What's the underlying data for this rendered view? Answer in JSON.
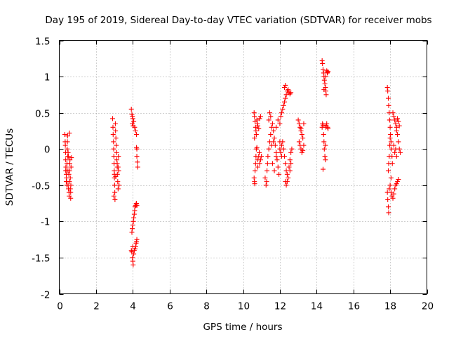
{
  "chart_data": {
    "type": "scatter",
    "title": "Day 195 of 2019, Sidereal Day-to-day VTEC variation (SDTVAR) for receiver mobs",
    "xlabel": "GPS time / hours",
    "ylabel": "SDTVAR / TECUs",
    "xlim": [
      0,
      20
    ],
    "ylim": [
      -2,
      1.5
    ],
    "xticks": [
      0,
      2,
      4,
      6,
      8,
      10,
      12,
      14,
      16,
      18,
      20
    ],
    "xtick_labels": [
      "0",
      "2",
      "4",
      "6",
      "8",
      "10",
      "12",
      "14",
      "16",
      "18",
      "20"
    ],
    "yticks": [
      -2,
      -1.5,
      -1,
      -0.5,
      0,
      0.5,
      1,
      1.5
    ],
    "ytick_labels": [
      "-2",
      "-1.5",
      "-1",
      "-0.5",
      "0",
      "0.5",
      "1",
      "1.5"
    ],
    "grid": true,
    "marker": "+",
    "color": "#ff0000",
    "series": [
      {
        "name": "SDTVAR",
        "points": [
          [
            0.3,
            0.2
          ],
          [
            0.32,
            0.1
          ],
          [
            0.33,
            0.05
          ],
          [
            0.34,
            -0.05
          ],
          [
            0.35,
            -0.15
          ],
          [
            0.36,
            -0.25
          ],
          [
            0.37,
            -0.3
          ],
          [
            0.38,
            -0.35
          ],
          [
            0.39,
            -0.4
          ],
          [
            0.4,
            -0.45
          ],
          [
            0.41,
            -0.5
          ],
          [
            0.42,
            -0.2
          ],
          [
            0.43,
            0.0
          ],
          [
            0.44,
            0.1
          ],
          [
            0.45,
            0.18
          ],
          [
            0.46,
            -0.1
          ],
          [
            0.47,
            -0.3
          ],
          [
            0.48,
            -0.5
          ],
          [
            0.5,
            -0.55
          ],
          [
            0.5,
            -0.1
          ],
          [
            0.52,
            -0.35
          ],
          [
            0.53,
            -0.6
          ],
          [
            0.54,
            -0.65
          ],
          [
            0.55,
            -0.45
          ],
          [
            0.56,
            -0.3
          ],
          [
            0.57,
            -0.2
          ],
          [
            0.58,
            -0.15
          ],
          [
            0.6,
            -0.4
          ],
          [
            0.6,
            -0.55
          ],
          [
            0.62,
            -0.68
          ],
          [
            0.63,
            -0.5
          ],
          [
            0.64,
            -0.25
          ],
          [
            0.66,
            -0.12
          ],
          [
            0.55,
            0.22
          ],
          [
            0.38,
            -0.45
          ],
          [
            0.62,
            -0.6
          ],
          [
            0.35,
            -0.3
          ],
          [
            0.48,
            -0.05
          ],
          [
            2.9,
            0.42
          ],
          [
            2.92,
            0.3
          ],
          [
            2.93,
            0.2
          ],
          [
            2.95,
            0.1
          ],
          [
            2.96,
            0.0
          ],
          [
            2.97,
            -0.1
          ],
          [
            2.98,
            -0.2
          ],
          [
            2.99,
            -0.3
          ],
          [
            3.0,
            -0.35
          ],
          [
            3.0,
            -0.4
          ],
          [
            3.01,
            -0.5
          ],
          [
            3.02,
            -0.6
          ],
          [
            3.03,
            -0.7
          ],
          [
            2.97,
            -0.65
          ],
          [
            3.05,
            0.35
          ],
          [
            3.06,
            0.25
          ],
          [
            3.08,
            0.15
          ],
          [
            3.1,
            0.05
          ],
          [
            3.12,
            -0.05
          ],
          [
            3.13,
            -0.15
          ],
          [
            3.15,
            -0.25
          ],
          [
            3.16,
            -0.35
          ],
          [
            3.18,
            -0.45
          ],
          [
            3.2,
            -0.55
          ],
          [
            3.22,
            -0.1
          ],
          [
            3.23,
            -0.3
          ],
          [
            3.25,
            -0.5
          ],
          [
            3.15,
            -0.2
          ],
          [
            3.2,
            -0.25
          ],
          [
            3.07,
            -0.38
          ],
          [
            3.92,
            0.55
          ],
          [
            3.95,
            0.48
          ],
          [
            3.98,
            0.45
          ],
          [
            4.0,
            0.42
          ],
          [
            4.05,
            0.38
          ],
          [
            4.1,
            0.3
          ],
          [
            4.15,
            0.25
          ],
          [
            4.2,
            0.2
          ],
          [
            3.97,
            0.35
          ],
          [
            4.02,
            0.32
          ],
          [
            4.2,
            0.02
          ],
          [
            4.22,
            -0.1
          ],
          [
            4.25,
            -0.18
          ],
          [
            4.27,
            -0.25
          ],
          [
            4.22,
            0.0
          ],
          [
            3.95,
            -1.15
          ],
          [
            3.97,
            -1.1
          ],
          [
            4.0,
            -1.05
          ],
          [
            4.03,
            -1.0
          ],
          [
            4.05,
            -0.95
          ],
          [
            4.08,
            -0.9
          ],
          [
            4.1,
            -0.85
          ],
          [
            4.12,
            -0.8
          ],
          [
            4.15,
            -0.78
          ],
          [
            4.18,
            -0.76
          ],
          [
            4.2,
            -0.75
          ],
          [
            4.22,
            -0.78
          ],
          [
            3.92,
            -1.4
          ],
          [
            3.95,
            -1.42
          ],
          [
            3.98,
            -1.5
          ],
          [
            4.0,
            -1.55
          ],
          [
            4.02,
            -1.6
          ],
          [
            4.05,
            -1.45
          ],
          [
            4.08,
            -1.4
          ],
          [
            4.12,
            -1.38
          ],
          [
            4.15,
            -1.35
          ],
          [
            4.18,
            -1.3
          ],
          [
            4.2,
            -1.28
          ],
          [
            4.22,
            -1.25
          ],
          [
            4.0,
            -1.35
          ],
          [
            10.6,
            0.5
          ],
          [
            10.62,
            0.45
          ],
          [
            10.65,
            0.38
          ],
          [
            10.68,
            0.3
          ],
          [
            10.7,
            0.25
          ],
          [
            10.72,
            0.2
          ],
          [
            10.75,
            0.4
          ],
          [
            10.78,
            0.35
          ],
          [
            10.8,
            0.32
          ],
          [
            10.85,
            0.28
          ],
          [
            10.9,
            0.42
          ],
          [
            10.95,
            0.45
          ],
          [
            10.62,
            0.15
          ],
          [
            10.6,
            -0.4
          ],
          [
            10.62,
            -0.45
          ],
          [
            10.63,
            -0.48
          ],
          [
            10.65,
            -0.3
          ],
          [
            10.68,
            -0.2
          ],
          [
            10.7,
            -0.1
          ],
          [
            10.72,
            0.0
          ],
          [
            10.75,
            0.02
          ],
          [
            10.78,
            -0.15
          ],
          [
            10.8,
            -0.25
          ],
          [
            10.85,
            -0.1
          ],
          [
            10.88,
            -0.05
          ],
          [
            10.9,
            -0.2
          ],
          [
            10.95,
            -0.15
          ],
          [
            11.0,
            -0.1
          ],
          [
            11.2,
            -0.4
          ],
          [
            11.25,
            -0.5
          ],
          [
            11.28,
            -0.45
          ],
          [
            11.3,
            -0.3
          ],
          [
            11.33,
            -0.2
          ],
          [
            11.35,
            -0.1
          ],
          [
            11.4,
            0.0
          ],
          [
            11.45,
            0.1
          ],
          [
            11.5,
            0.2
          ],
          [
            11.55,
            0.3
          ],
          [
            11.4,
            0.4
          ],
          [
            11.45,
            0.5
          ],
          [
            11.5,
            0.45
          ],
          [
            11.6,
            0.35
          ],
          [
            11.65,
            0.25
          ],
          [
            11.7,
            0.15
          ],
          [
            11.75,
            0.05
          ],
          [
            11.8,
            -0.05
          ],
          [
            11.85,
            -0.15
          ],
          [
            11.9,
            -0.25
          ],
          [
            11.95,
            -0.35
          ],
          [
            11.6,
            -0.2
          ],
          [
            11.7,
            -0.3
          ],
          [
            11.8,
            -0.1
          ],
          [
            11.55,
            0.05
          ],
          [
            11.65,
            0.1
          ],
          [
            11.8,
            0.3
          ],
          [
            11.9,
            0.4
          ],
          [
            12.0,
            0.35
          ],
          [
            12.05,
            0.45
          ],
          [
            12.1,
            0.5
          ],
          [
            12.15,
            0.55
          ],
          [
            12.2,
            0.6
          ],
          [
            12.25,
            0.65
          ],
          [
            12.3,
            0.7
          ],
          [
            12.35,
            0.75
          ],
          [
            12.25,
            0.85
          ],
          [
            12.3,
            0.88
          ],
          [
            12.4,
            0.8
          ],
          [
            12.5,
            0.78
          ],
          [
            12.55,
            0.76
          ],
          [
            12.6,
            0.78
          ],
          [
            12.45,
            0.82
          ],
          [
            12.0,
            0.0
          ],
          [
            12.05,
            -0.05
          ],
          [
            12.1,
            0.05
          ],
          [
            12.15,
            0.1
          ],
          [
            12.2,
            0.0
          ],
          [
            12.25,
            -0.1
          ],
          [
            12.3,
            -0.2
          ],
          [
            12.35,
            -0.3
          ],
          [
            12.4,
            -0.35
          ],
          [
            12.45,
            -0.4
          ],
          [
            12.3,
            -0.45
          ],
          [
            12.35,
            -0.5
          ],
          [
            12.4,
            -0.45
          ],
          [
            12.5,
            -0.25
          ],
          [
            12.55,
            -0.15
          ],
          [
            12.6,
            -0.05
          ],
          [
            12.65,
            0.0
          ],
          [
            12.55,
            -0.3
          ],
          [
            12.6,
            -0.2
          ],
          [
            12.0,
            0.1
          ],
          [
            12.1,
            -0.1
          ],
          [
            13.0,
            0.4
          ],
          [
            13.05,
            0.35
          ],
          [
            13.1,
            0.3
          ],
          [
            13.15,
            0.25
          ],
          [
            13.2,
            0.2
          ],
          [
            13.25,
            0.15
          ],
          [
            13.05,
            0.1
          ],
          [
            13.1,
            0.05
          ],
          [
            13.15,
            0.0
          ],
          [
            13.2,
            -0.05
          ],
          [
            13.25,
            -0.02
          ],
          [
            13.3,
            0.05
          ],
          [
            13.3,
            0.35
          ],
          [
            13.15,
            0.28
          ],
          [
            14.3,
            1.22
          ],
          [
            14.32,
            1.18
          ],
          [
            14.35,
            1.1
          ],
          [
            14.38,
            1.05
          ],
          [
            14.4,
            1.0
          ],
          [
            14.42,
            0.95
          ],
          [
            14.45,
            0.9
          ],
          [
            14.48,
            0.85
          ],
          [
            14.5,
            0.8
          ],
          [
            14.52,
            0.75
          ],
          [
            14.55,
            1.08
          ],
          [
            14.58,
            1.05
          ],
          [
            14.6,
            1.06
          ],
          [
            14.62,
            1.07
          ],
          [
            14.4,
            0.82
          ],
          [
            14.5,
            1.0
          ],
          [
            14.3,
            0.3
          ],
          [
            14.32,
            0.35
          ],
          [
            14.35,
            0.33
          ],
          [
            14.38,
            0.2
          ],
          [
            14.4,
            0.1
          ],
          [
            14.42,
            0.0
          ],
          [
            14.45,
            -0.1
          ],
          [
            14.48,
            -0.15
          ],
          [
            14.5,
            0.3
          ],
          [
            14.52,
            0.32
          ],
          [
            14.55,
            0.35
          ],
          [
            14.6,
            0.3
          ],
          [
            14.62,
            0.28
          ],
          [
            14.35,
            -0.28
          ],
          [
            14.48,
            0.05
          ],
          [
            17.85,
            0.85
          ],
          [
            17.87,
            0.8
          ],
          [
            17.9,
            0.7
          ],
          [
            17.92,
            0.6
          ],
          [
            17.95,
            0.5
          ],
          [
            17.97,
            0.4
          ],
          [
            18.0,
            0.3
          ],
          [
            18.02,
            0.2
          ],
          [
            18.05,
            0.1
          ],
          [
            18.08,
            0.0
          ],
          [
            18.1,
            -0.1
          ],
          [
            18.12,
            -0.2
          ],
          [
            17.9,
            -0.3
          ],
          [
            17.92,
            -0.2
          ],
          [
            17.95,
            -0.1
          ],
          [
            17.98,
            0.05
          ],
          [
            18.0,
            0.15
          ],
          [
            18.15,
            0.5
          ],
          [
            18.2,
            0.45
          ],
          [
            18.25,
            0.4
          ],
          [
            18.3,
            0.35
          ],
          [
            18.35,
            0.3
          ],
          [
            18.4,
            0.2
          ],
          [
            18.45,
            0.1
          ],
          [
            18.5,
            0.0
          ],
          [
            18.55,
            -0.05
          ],
          [
            18.35,
            0.25
          ],
          [
            18.4,
            0.42
          ],
          [
            18.45,
            0.38
          ],
          [
            18.5,
            0.32
          ],
          [
            18.2,
            0.05
          ],
          [
            18.25,
            -0.05
          ],
          [
            18.3,
            0.0
          ],
          [
            18.35,
            -0.1
          ],
          [
            17.85,
            -0.6
          ],
          [
            17.87,
            -0.7
          ],
          [
            17.9,
            -0.8
          ],
          [
            17.92,
            -0.88
          ],
          [
            17.95,
            -0.55
          ],
          [
            18.0,
            -0.5
          ],
          [
            18.05,
            -0.6
          ],
          [
            18.1,
            -0.65
          ],
          [
            18.15,
            -0.68
          ],
          [
            18.2,
            -0.62
          ],
          [
            18.25,
            -0.55
          ],
          [
            18.3,
            -0.5
          ],
          [
            18.35,
            -0.48
          ],
          [
            18.4,
            -0.45
          ],
          [
            18.45,
            -0.42
          ],
          [
            18.05,
            -0.4
          ]
        ]
      }
    ]
  }
}
